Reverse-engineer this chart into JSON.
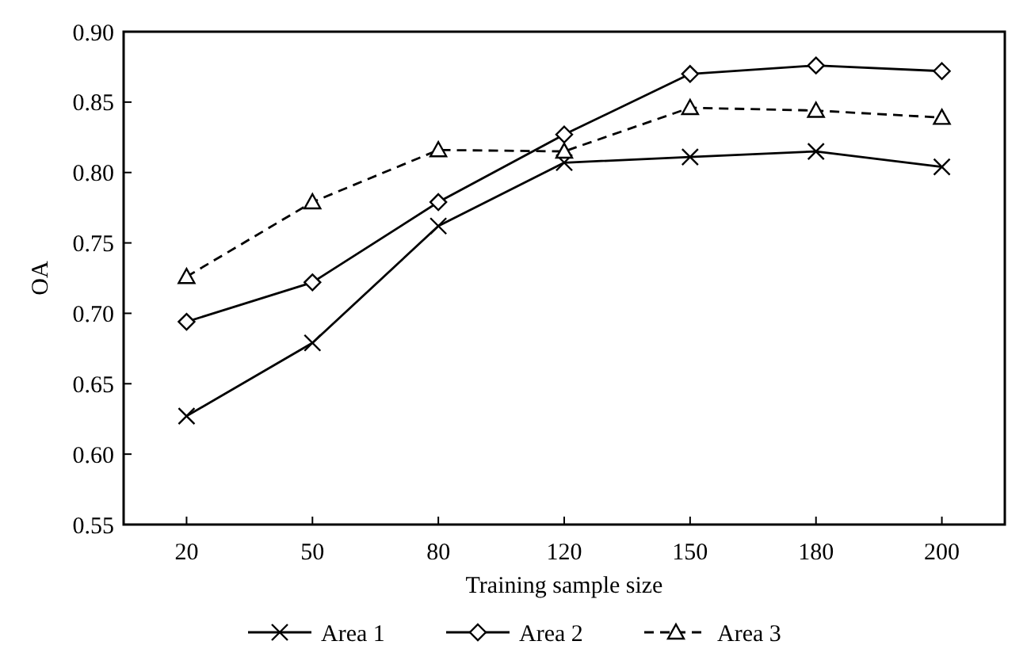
{
  "chart_data": {
    "type": "line",
    "xlabel": "Training sample size",
    "ylabel": "OA",
    "categories": [
      "20",
      "50",
      "80",
      "120",
      "150",
      "180",
      "200"
    ],
    "ylim": [
      0.55,
      0.9
    ],
    "yticks": [
      {
        "value": 0.55,
        "label": "0.55"
      },
      {
        "value": 0.6,
        "label": "0.60"
      },
      {
        "value": 0.65,
        "label": "0.65"
      },
      {
        "value": 0.7,
        "label": "0.70"
      },
      {
        "value": 0.75,
        "label": "0.75"
      },
      {
        "value": 0.8,
        "label": "0.80"
      },
      {
        "value": 0.85,
        "label": "0.85"
      },
      {
        "value": 0.9,
        "label": "0.90"
      }
    ],
    "grid": false,
    "legend": "bottom",
    "series": [
      {
        "name": "Area 1",
        "color": "#000000",
        "marker": "cross",
        "line_style": "solid",
        "values": [
          0.627,
          0.679,
          0.762,
          0.807,
          0.811,
          0.815,
          0.804
        ]
      },
      {
        "name": "Area 2",
        "color": "#000000",
        "marker": "diamond",
        "line_style": "solid",
        "values": [
          0.694,
          0.722,
          0.779,
          0.827,
          0.87,
          0.876,
          0.872
        ]
      },
      {
        "name": "Area 3",
        "color": "#000000",
        "marker": "triangle",
        "line_style": "dashed",
        "values": [
          0.726,
          0.779,
          0.816,
          0.815,
          0.846,
          0.844,
          0.839
        ]
      }
    ]
  }
}
